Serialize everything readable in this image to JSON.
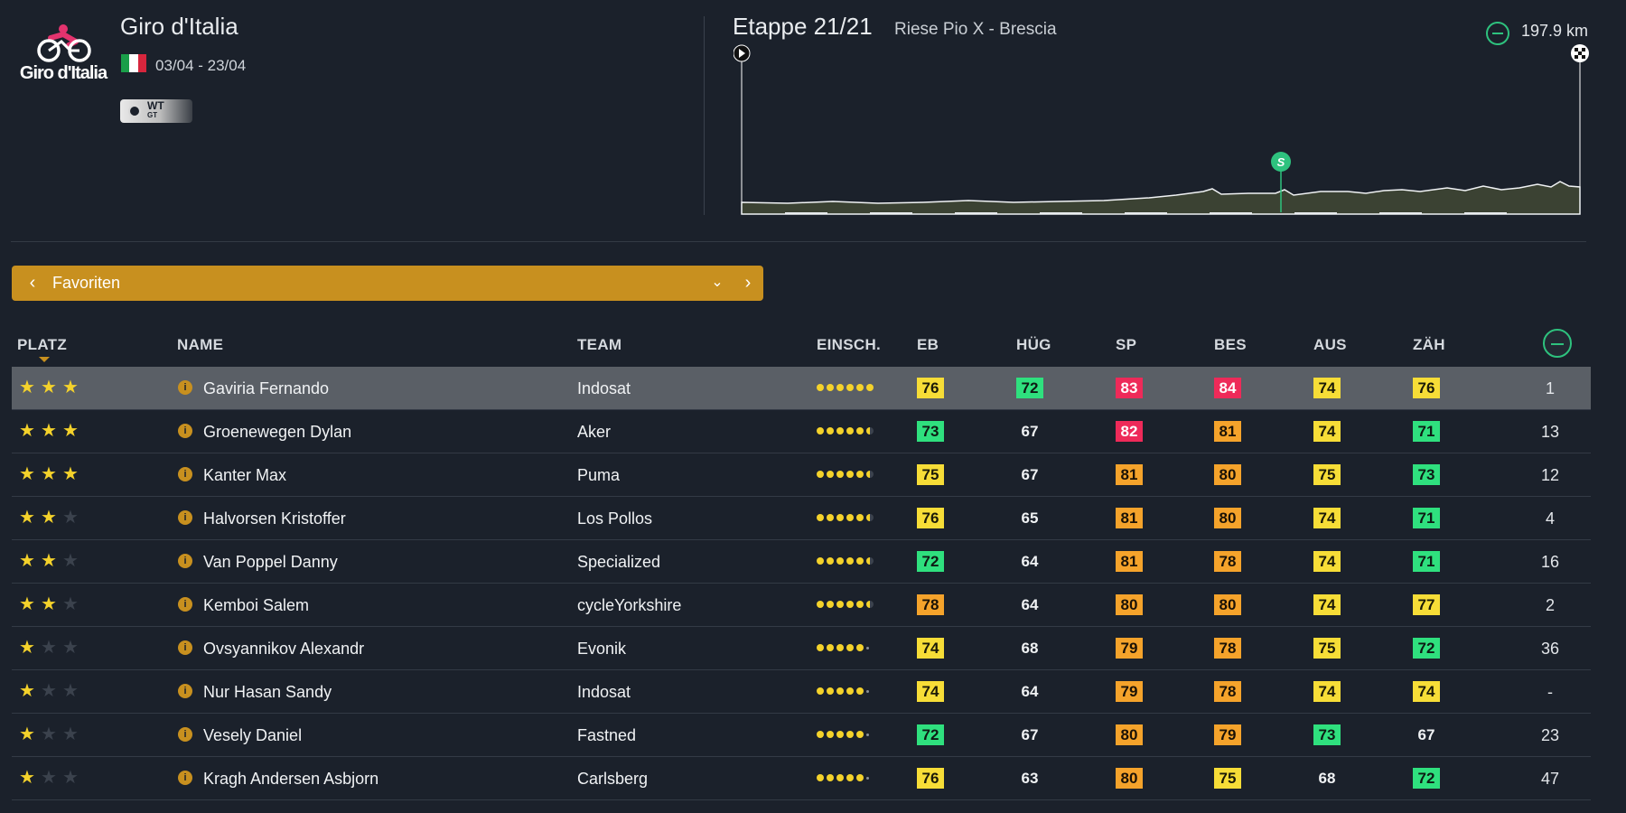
{
  "race": {
    "title": "Giro d'Italia",
    "dates": "03/04 - 23/04",
    "logo_text": "Giro d'Italia",
    "badge": {
      "main": "WT",
      "sub": "GT"
    },
    "flag_colors": [
      "#1a9e49",
      "#ffffff",
      "#d7263d"
    ]
  },
  "stage": {
    "title": "Etappe 21/21",
    "route": "Riese Pio X - Brescia",
    "distance": "197.9 km",
    "sprint_marker": "S"
  },
  "filter": {
    "label": "Favoriten"
  },
  "table": {
    "headers": {
      "platz": "PLATZ",
      "name": "NAME",
      "team": "TEAM",
      "einsch": "EINSCH.",
      "eb": "EB",
      "hug": "HÜG",
      "sp": "SP",
      "bes": "BES",
      "aus": "AUS",
      "zah": "ZÄH"
    },
    "rows": [
      {
        "stars": 3,
        "name": "Gaviria Fernando",
        "team": "Indosat",
        "form": [
          1,
          1,
          1,
          1,
          1,
          1
        ],
        "stats": [
          {
            "v": "76",
            "c": "yellow"
          },
          {
            "v": "72",
            "c": "green"
          },
          {
            "v": "83",
            "c": "red"
          },
          {
            "v": "84",
            "c": "red"
          },
          {
            "v": "74",
            "c": "yellow"
          },
          {
            "v": "76",
            "c": "yellow"
          }
        ],
        "pos": "1",
        "selected": true
      },
      {
        "stars": 3,
        "name": "Groenewegen Dylan",
        "team": "Aker",
        "form": [
          1,
          1,
          1,
          1,
          1,
          0.5
        ],
        "stats": [
          {
            "v": "73",
            "c": "green"
          },
          {
            "v": "67",
            "c": "plain"
          },
          {
            "v": "82",
            "c": "red"
          },
          {
            "v": "81",
            "c": "orange"
          },
          {
            "v": "74",
            "c": "yellow"
          },
          {
            "v": "71",
            "c": "green"
          }
        ],
        "pos": "13"
      },
      {
        "stars": 3,
        "name": "Kanter Max",
        "team": "Puma",
        "form": [
          1,
          1,
          1,
          1,
          1,
          0.5
        ],
        "stats": [
          {
            "v": "75",
            "c": "yellow"
          },
          {
            "v": "67",
            "c": "plain"
          },
          {
            "v": "81",
            "c": "orange"
          },
          {
            "v": "80",
            "c": "orange"
          },
          {
            "v": "75",
            "c": "yellow"
          },
          {
            "v": "73",
            "c": "green"
          }
        ],
        "pos": "12"
      },
      {
        "stars": 2,
        "name": "Halvorsen Kristoffer",
        "team": "Los Pollos",
        "form": [
          1,
          1,
          1,
          1,
          1,
          0.5
        ],
        "stats": [
          {
            "v": "76",
            "c": "yellow"
          },
          {
            "v": "65",
            "c": "plain"
          },
          {
            "v": "81",
            "c": "orange"
          },
          {
            "v": "80",
            "c": "orange"
          },
          {
            "v": "74",
            "c": "yellow"
          },
          {
            "v": "71",
            "c": "green"
          }
        ],
        "pos": "4"
      },
      {
        "stars": 2,
        "name": "Van Poppel Danny",
        "team": "Specialized",
        "form": [
          1,
          1,
          1,
          1,
          1,
          0.5
        ],
        "stats": [
          {
            "v": "72",
            "c": "green"
          },
          {
            "v": "64",
            "c": "plain"
          },
          {
            "v": "81",
            "c": "orange"
          },
          {
            "v": "78",
            "c": "orange"
          },
          {
            "v": "74",
            "c": "yellow"
          },
          {
            "v": "71",
            "c": "green"
          }
        ],
        "pos": "16"
      },
      {
        "stars": 2,
        "name": "Kemboi Salem",
        "team": "cycleYorkshire",
        "form": [
          1,
          1,
          1,
          1,
          1,
          0.5
        ],
        "stats": [
          {
            "v": "78",
            "c": "orange"
          },
          {
            "v": "64",
            "c": "plain"
          },
          {
            "v": "80",
            "c": "orange"
          },
          {
            "v": "80",
            "c": "orange"
          },
          {
            "v": "74",
            "c": "yellow"
          },
          {
            "v": "77",
            "c": "yellow"
          }
        ],
        "pos": "2"
      },
      {
        "stars": 1,
        "name": "Ovsyannikov Alexandr",
        "team": "Evonik",
        "form": [
          1,
          1,
          1,
          1,
          1,
          0
        ],
        "stats": [
          {
            "v": "74",
            "c": "yellow"
          },
          {
            "v": "68",
            "c": "plain"
          },
          {
            "v": "79",
            "c": "orange"
          },
          {
            "v": "78",
            "c": "orange"
          },
          {
            "v": "75",
            "c": "yellow"
          },
          {
            "v": "72",
            "c": "green"
          }
        ],
        "pos": "36"
      },
      {
        "stars": 1,
        "name": "Nur Hasan Sandy",
        "team": "Indosat",
        "form": [
          1,
          1,
          1,
          1,
          1,
          0
        ],
        "stats": [
          {
            "v": "74",
            "c": "yellow"
          },
          {
            "v": "64",
            "c": "plain"
          },
          {
            "v": "79",
            "c": "orange"
          },
          {
            "v": "78",
            "c": "orange"
          },
          {
            "v": "74",
            "c": "yellow"
          },
          {
            "v": "74",
            "c": "yellow"
          }
        ],
        "pos": "-"
      },
      {
        "stars": 1,
        "name": "Vesely Daniel",
        "team": "Fastned",
        "form": [
          1,
          1,
          1,
          1,
          1,
          0
        ],
        "stats": [
          {
            "v": "72",
            "c": "green"
          },
          {
            "v": "67",
            "c": "plain"
          },
          {
            "v": "80",
            "c": "orange"
          },
          {
            "v": "79",
            "c": "orange"
          },
          {
            "v": "73",
            "c": "green"
          },
          {
            "v": "67",
            "c": "plain"
          }
        ],
        "pos": "23"
      },
      {
        "stars": 1,
        "name": "Kragh Andersen Asbjorn",
        "team": "Carlsberg",
        "form": [
          1,
          1,
          1,
          1,
          1,
          0
        ],
        "stats": [
          {
            "v": "76",
            "c": "yellow"
          },
          {
            "v": "63",
            "c": "plain"
          },
          {
            "v": "80",
            "c": "orange"
          },
          {
            "v": "75",
            "c": "yellow"
          },
          {
            "v": "68",
            "c": "plain"
          },
          {
            "v": "72",
            "c": "green"
          }
        ],
        "pos": "47"
      }
    ]
  },
  "colors": {
    "background": "#1b212b",
    "accent_gold": "#c8901f",
    "green": "#2fe07e",
    "yellow": "#f7dd37",
    "orange": "#f5a32b",
    "red": "#ee2a59",
    "star": "#f4d22b"
  },
  "icons": {
    "prev": "chevron-left-icon",
    "next": "chevron-right-icon",
    "dropdown": "chevron-down-icon",
    "start": "play-icon",
    "finish": "checkered-flag-icon",
    "distance": "route-icon",
    "info": "info-icon",
    "column_toggle": "route-icon"
  }
}
